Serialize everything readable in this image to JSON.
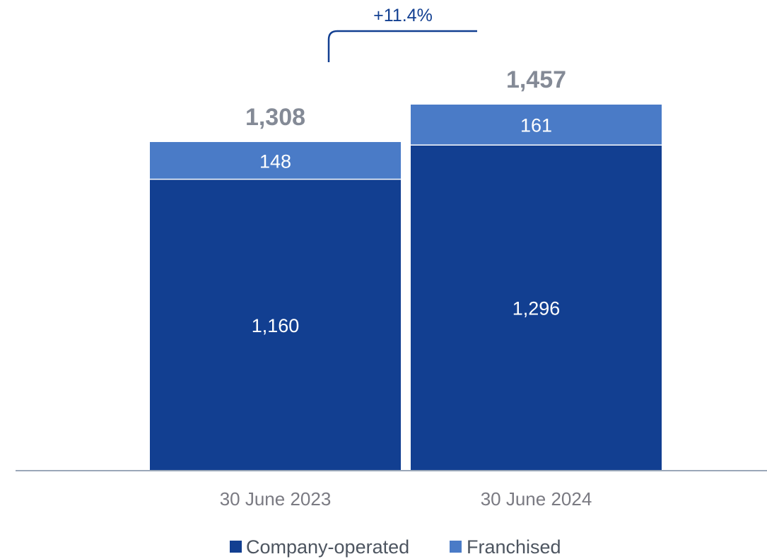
{
  "chart_data": {
    "type": "bar",
    "stacked": true,
    "categories": [
      "30 June 2023",
      "30 June 2024"
    ],
    "series": [
      {
        "name": "Company-operated",
        "values": [
          1160,
          1296
        ],
        "color": "#123f91"
      },
      {
        "name": "Franchised",
        "values": [
          148,
          161
        ],
        "color": "#4a7bc7"
      }
    ],
    "totals": [
      "1,308",
      "1,457"
    ],
    "segment_labels": [
      [
        "1,160",
        "148"
      ],
      [
        "1,296",
        "161"
      ]
    ],
    "growth_label": "+11.4%",
    "axis_color": "#9aa7b8",
    "grid": false,
    "legend_position": "bottom-center",
    "ylim": [
      0,
      1457
    ]
  }
}
